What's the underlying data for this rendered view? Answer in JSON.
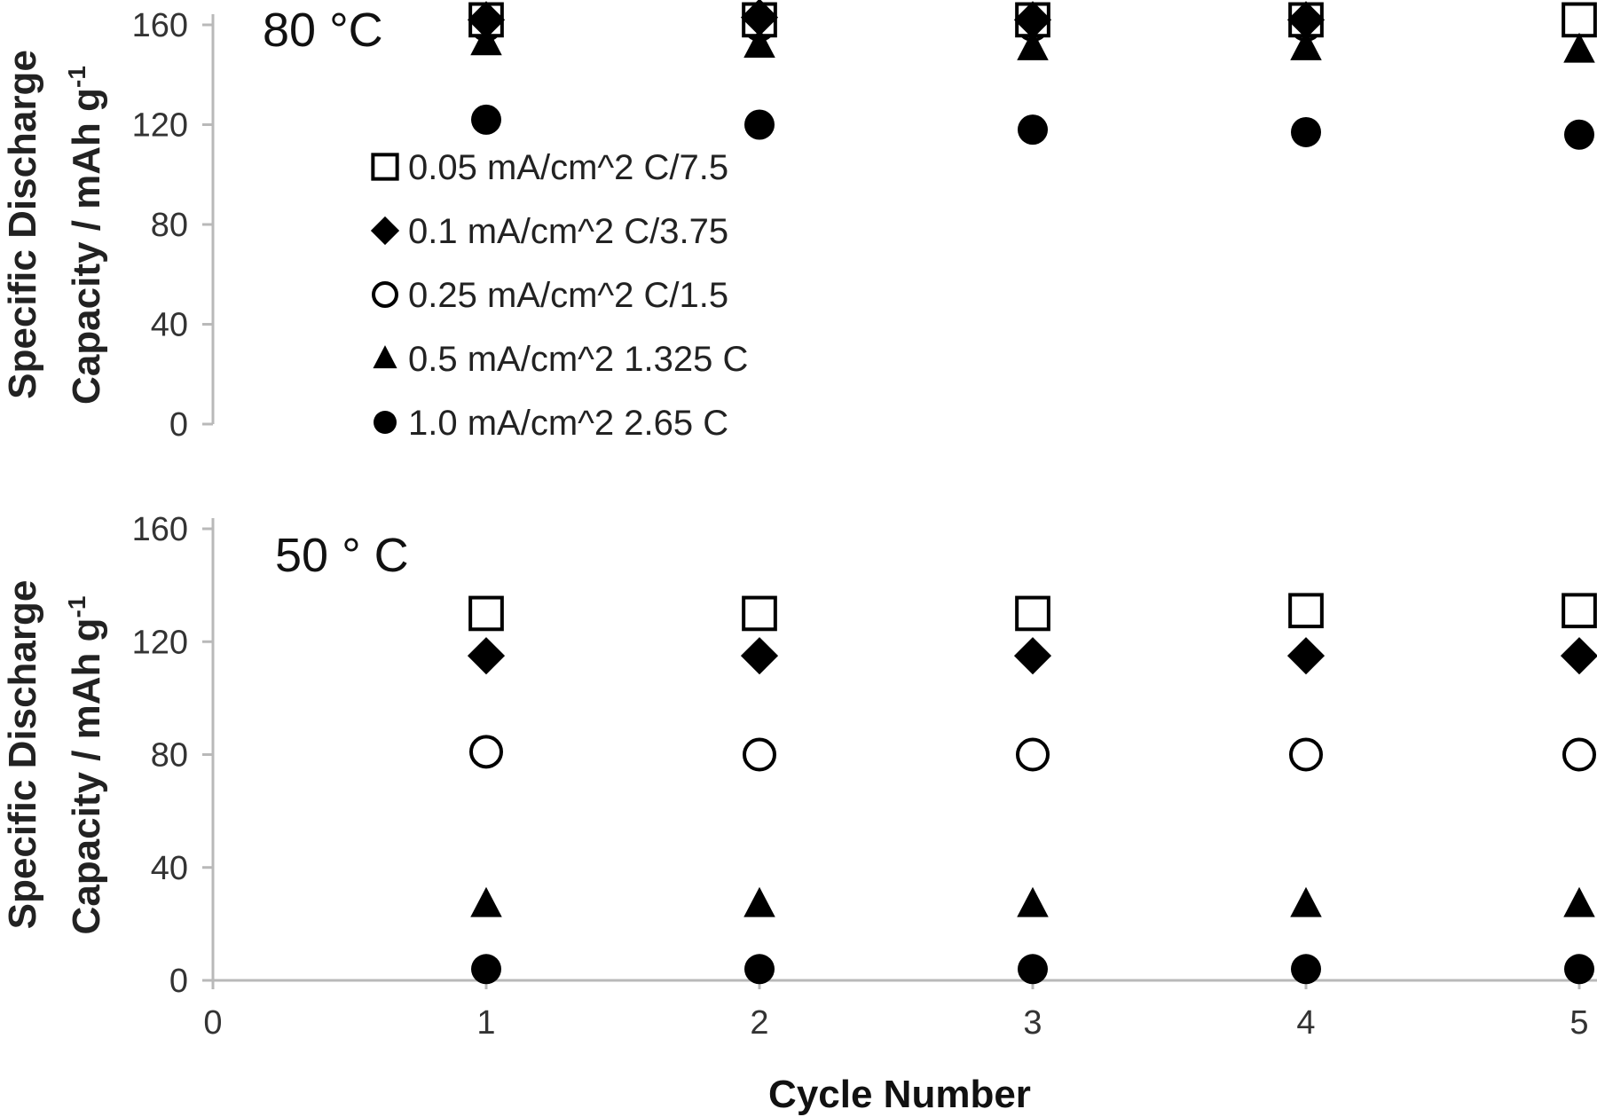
{
  "chart_data": [
    {
      "type": "scatter",
      "panel_label": "80 °C",
      "xlim": [
        0,
        5
      ],
      "ylim": [
        0,
        160
      ],
      "yticks": [
        0,
        40,
        80,
        120,
        160
      ],
      "ylabel_line1": "Specific Discharge",
      "ylabel_line2": "Capacity / mAh g",
      "ylabel_sup": "-1",
      "grid": false,
      "legend_placement": "upper-left",
      "series": [
        {
          "name": "0.05 mA/cm^2 C/7.5",
          "marker": "square-open",
          "x": [
            1,
            2,
            3,
            4,
            5
          ],
          "y": [
            162,
            162,
            162,
            162,
            162
          ]
        },
        {
          "name": "0.1 mA/cm^2 C/3.75",
          "marker": "diamond-filled",
          "x": [
            1,
            2,
            3,
            4
          ],
          "y": [
            162,
            163,
            162,
            162
          ]
        },
        {
          "name": "0.25 mA/cm^2 C/1.5",
          "marker": "circle-open",
          "x": [
            1,
            2,
            3,
            4
          ],
          "y": [
            160,
            160,
            160,
            160
          ]
        },
        {
          "name": "0.5 mA/cm^2 1.325 C",
          "marker": "triangle-filled",
          "x": [
            1,
            2,
            3,
            4,
            5
          ],
          "y": [
            153,
            152,
            151,
            151,
            150
          ]
        },
        {
          "name": "1.0 mA/cm^2 2.65 C",
          "marker": "circle-filled",
          "x": [
            1,
            2,
            3,
            4,
            5
          ],
          "y": [
            122,
            120,
            118,
            117,
            116
          ]
        }
      ]
    },
    {
      "type": "scatter",
      "panel_label": "50 ° C",
      "xlim": [
        0,
        5
      ],
      "ylim": [
        0,
        160
      ],
      "xticks": [
        0,
        1,
        2,
        3,
        4,
        5
      ],
      "yticks": [
        0,
        40,
        80,
        120,
        160
      ],
      "xlabel": "Cycle Number",
      "ylabel_line1": "Specific Discharge",
      "ylabel_line2": "Capacity / mAh g",
      "ylabel_sup": "-1",
      "grid": false,
      "series": [
        {
          "name": "0.05 mA/cm^2 C/7.5",
          "marker": "square-open",
          "x": [
            1,
            2,
            3,
            4,
            5
          ],
          "y": [
            130,
            130,
            130,
            131,
            131
          ]
        },
        {
          "name": "0.1 mA/cm^2 C/3.75",
          "marker": "diamond-filled",
          "x": [
            1,
            2,
            3,
            4,
            5
          ],
          "y": [
            115,
            115,
            115,
            115,
            115
          ]
        },
        {
          "name": "0.25 mA/cm^2 C/1.5",
          "marker": "circle-open",
          "x": [
            1,
            2,
            3,
            4,
            5
          ],
          "y": [
            81,
            80,
            80,
            80,
            80
          ]
        },
        {
          "name": "0.5 mA/cm^2 1.325 C",
          "marker": "triangle-filled",
          "x": [
            1,
            2,
            3,
            4,
            5
          ],
          "y": [
            27,
            27,
            27,
            27,
            27
          ]
        },
        {
          "name": "1.0 mA/cm^2 2.65 C",
          "marker": "circle-filled",
          "x": [
            1,
            2,
            3,
            4,
            5
          ],
          "y": [
            4,
            4,
            4,
            4,
            4
          ]
        }
      ]
    }
  ],
  "legend": {
    "entries": [
      {
        "label": "0.05 mA/cm^2 C/7.5",
        "marker": "square-open"
      },
      {
        "label": "0.1 mA/cm^2 C/3.75",
        "marker": "diamond-filled"
      },
      {
        "label": "0.25 mA/cm^2 C/1.5",
        "marker": "circle-open"
      },
      {
        "label": "0.5 mA/cm^2 1.325 C",
        "marker": "triangle-filled"
      },
      {
        "label": "1.0 mA/cm^2 2.65 C",
        "marker": "circle-filled"
      }
    ]
  },
  "colors": {
    "marker": "#000000",
    "axis": "#b9b9b9"
  }
}
